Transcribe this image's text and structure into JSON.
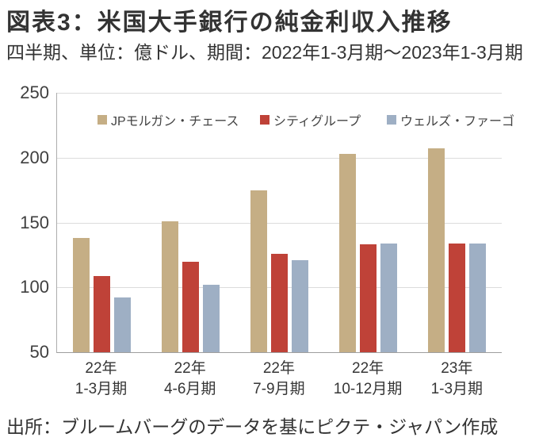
{
  "figure": {
    "title": "図表3：米国大手銀行の純金利収入推移",
    "subtitle": "四半期、単位：億ドル、期間：2022年1-3月期～2023年1-3月期",
    "source": "出所：ブルームバーグのデータを基にピクテ・ジャパン作成"
  },
  "chart_data": {
    "type": "bar",
    "title": "図表3：米国大手銀行の純金利収入推移",
    "subtitle": "四半期、単位：億ドル、期間：2022年1-3月期～2023年1-3月期",
    "unit": "億ドル",
    "categories": [
      "22年1-3月期",
      "22年4-6月期",
      "22年7-9月期",
      "22年10-12月期",
      "23年1-3月期"
    ],
    "category_labels": [
      [
        "22年",
        "1-3月期"
      ],
      [
        "22年",
        "4-6月期"
      ],
      [
        "22年",
        "7-9月期"
      ],
      [
        "22年",
        "10-12月期"
      ],
      [
        "23年",
        "1-3月期"
      ]
    ],
    "series": [
      {
        "key": "jpmorgan-chase",
        "name": "JPモルガン・チェース",
        "color": "#C5AE85",
        "values": [
          138,
          151,
          175,
          203,
          207
        ]
      },
      {
        "key": "citigroup",
        "name": "シティグループ",
        "color": "#BF4238",
        "values": [
          109,
          120,
          126,
          133,
          134
        ]
      },
      {
        "key": "wells-fargo",
        "name": "ウェルズ・ファーゴ",
        "color": "#9EAFC4",
        "values": [
          92,
          102,
          121,
          134,
          134
        ]
      }
    ],
    "xlabel": "",
    "ylabel": "",
    "ylim": [
      50,
      250
    ],
    "yticks": [
      250,
      200,
      150,
      100,
      50
    ],
    "grid": true,
    "legend_position": "top-inside",
    "source": "出所：ブルームバーグのデータを基にピクテ・ジャパン作成"
  }
}
